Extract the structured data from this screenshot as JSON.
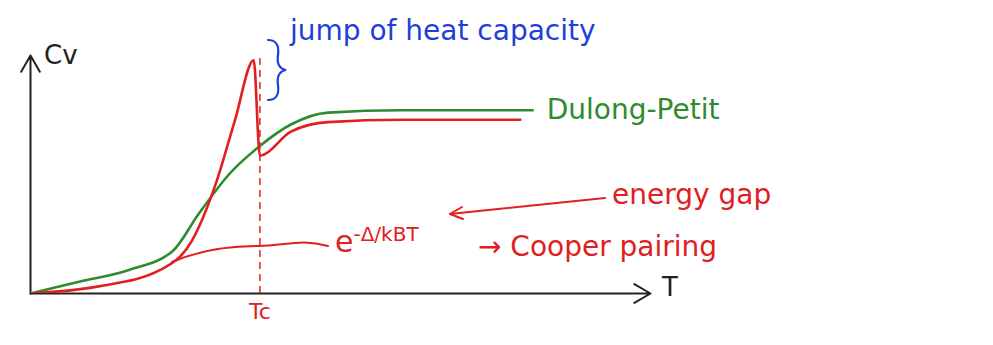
{
  "chart_data": {
    "type": "line",
    "x_label": "T",
    "y_label": "Cv",
    "xlim": [
      0,
      10
    ],
    "ylim": [
      0,
      10
    ],
    "xticks": [
      {
        "value": 3.7,
        "label": "Tc"
      }
    ],
    "yticks": [],
    "tick_labels": "x",
    "grid": false,
    "series": [
      {
        "name": "Dulong-Petit",
        "color": "#2e8b2e",
        "x": [
          0,
          0.8,
          1.6,
          2.3,
          2.7,
          3.2,
          3.7,
          4.2,
          4.8,
          6.0,
          8.1
        ],
        "values": [
          0,
          0.5,
          1.0,
          1.8,
          3.3,
          5.0,
          6.2,
          7.1,
          7.6,
          7.7,
          7.7
        ]
      },
      {
        "color": "#e02020",
        "x": [
          0,
          1.1,
          2.1,
          2.6,
          3.0,
          3.3,
          3.6,
          3.7,
          4.2,
          4.8,
          6.0,
          7.9
        ],
        "values": [
          0,
          0.3,
          1.0,
          2.2,
          4.7,
          7.3,
          9.8,
          5.8,
          6.8,
          7.2,
          7.3,
          7.3
        ]
      }
    ],
    "annotations": [
      {
        "text": "jump of heat capacity",
        "color": "#1f3fd6"
      },
      {
        "text": "energy gap",
        "color": "#e02020"
      },
      {
        "base": "e",
        "exponent": "-Δ/kBT",
        "color": "#e02020"
      },
      {
        "text": "→ Cooper pairing",
        "color": "#e02020"
      }
    ]
  }
}
